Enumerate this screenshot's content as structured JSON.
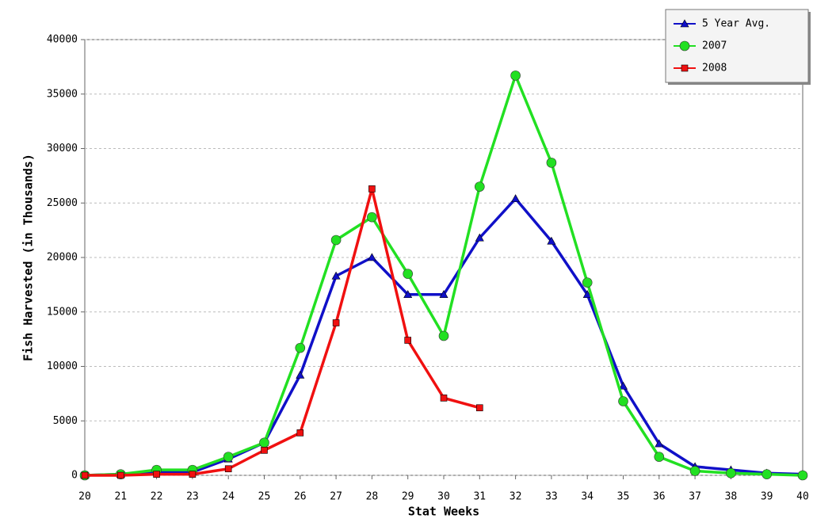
{
  "chart_data": {
    "type": "line",
    "x_label": "Stat Weeks",
    "y_label": "Fish Harvested (in Thousands)",
    "x": [
      20,
      21,
      22,
      23,
      24,
      25,
      26,
      27,
      28,
      29,
      30,
      31,
      32,
      33,
      34,
      35,
      36,
      37,
      38,
      39,
      40
    ],
    "series": [
      {
        "name": "5 Year Avg.",
        "color": "#1010c8",
        "marker": "triangle",
        "values": [
          0,
          100,
          300,
          300,
          1500,
          3000,
          9200,
          18300,
          20000,
          16600,
          16600,
          21800,
          25400,
          21500,
          16600,
          8200,
          2900,
          800,
          500,
          200,
          100
        ]
      },
      {
        "name": "2007",
        "color": "#22e022",
        "marker": "circle",
        "values": [
          0,
          100,
          500,
          500,
          1700,
          3000,
          11700,
          21600,
          23700,
          18500,
          12800,
          26500,
          36700,
          28700,
          17700,
          6800,
          1700,
          400,
          200,
          100,
          0
        ]
      },
      {
        "name": "2008",
        "color": "#f01010",
        "marker": "square",
        "values": [
          0,
          0,
          100,
          100,
          600,
          2300,
          3900,
          14000,
          26300,
          12400,
          7100,
          6200,
          null,
          null,
          null,
          null,
          null,
          null,
          null,
          null,
          null
        ]
      }
    ],
    "xlim": [
      20,
      40
    ],
    "ylim": [
      0,
      40000
    ],
    "xticks": [
      20,
      21,
      22,
      23,
      24,
      25,
      26,
      27,
      28,
      29,
      30,
      31,
      32,
      33,
      34,
      35,
      36,
      37,
      38,
      39,
      40
    ],
    "yticks": [
      0,
      5000,
      10000,
      15000,
      20000,
      25000,
      30000,
      35000,
      40000
    ],
    "grid": true,
    "legend": "top-right"
  }
}
